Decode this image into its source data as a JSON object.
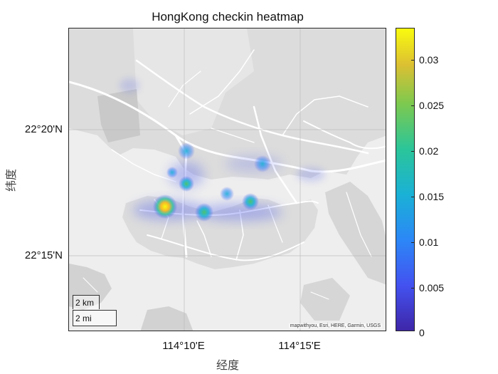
{
  "title": "HongKong checkin heatmap",
  "xlabel": "经度",
  "ylabel": "纬度",
  "y_ticks": [
    "22°20'N",
    "22°15'N"
  ],
  "x_ticks": [
    "114°10'E",
    "114°15'E"
  ],
  "scalebar": {
    "km": "2 km",
    "mi": "2 mi"
  },
  "attribution": "mapwithyou, Esri, HERE, Garmin, USGS",
  "colorbar": {
    "ticks": [
      "0.03",
      "0.025",
      "0.02",
      "0.015",
      "0.01",
      "0.005",
      "0"
    ],
    "min": 0,
    "max": 0.0335
  },
  "colors": {
    "land": "#dcdcdc",
    "water": "#eeeeee",
    "roads": "#ffffff"
  }
}
